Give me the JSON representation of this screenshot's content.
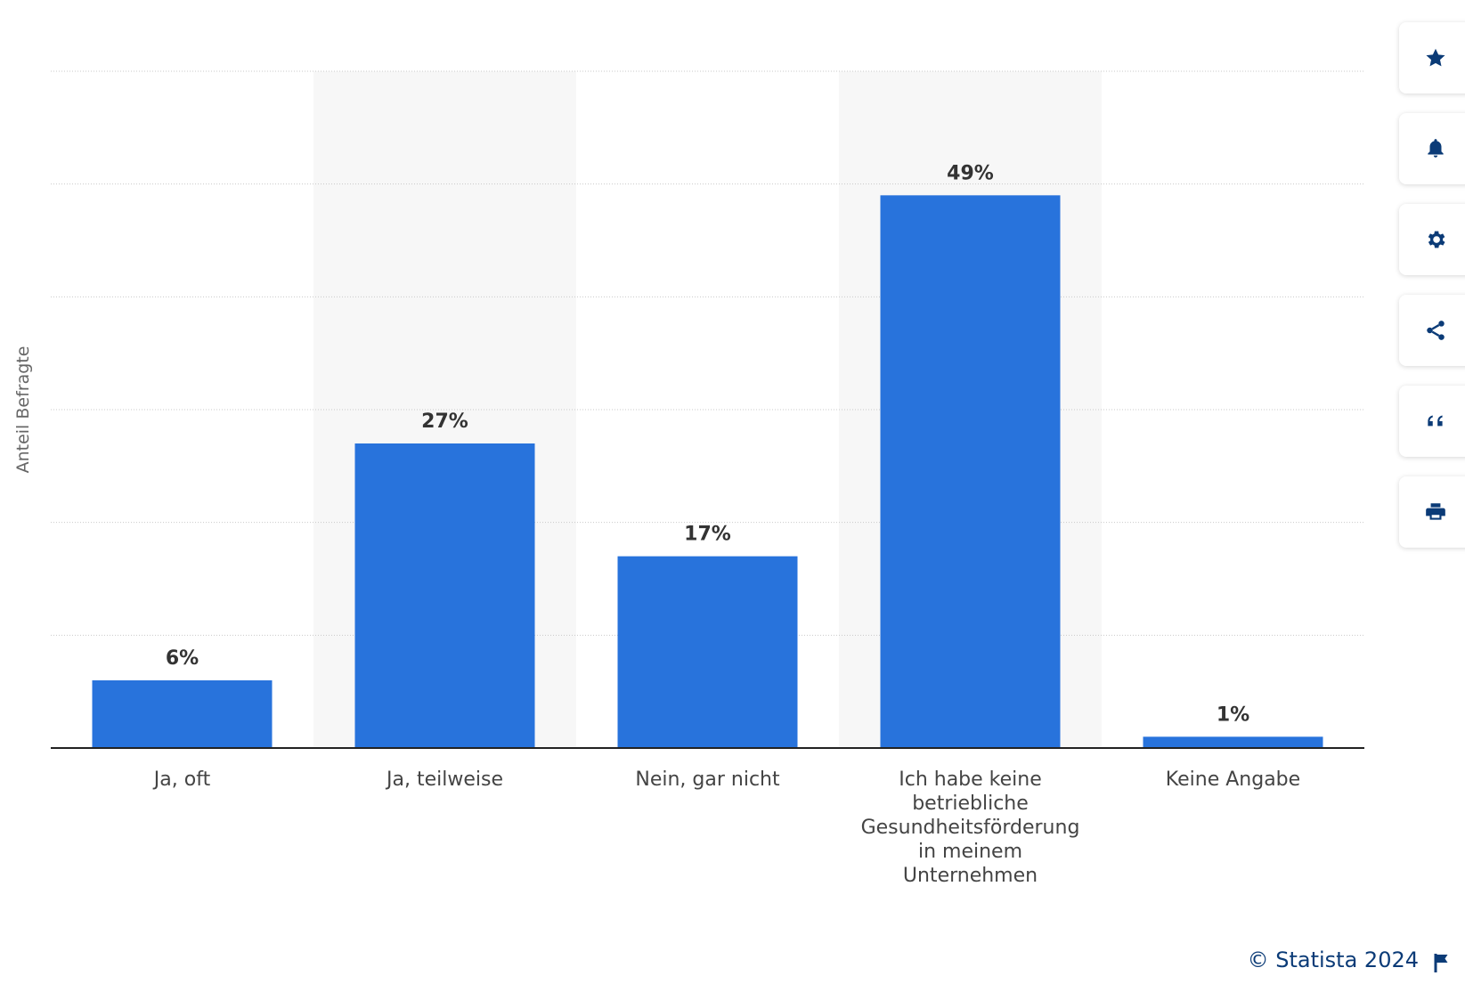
{
  "chart_data": {
    "type": "bar",
    "categories": [
      [
        "Ja, oft"
      ],
      [
        "Ja, teilweise"
      ],
      [
        "Nein, gar nicht"
      ],
      [
        "Ich habe keine",
        "betriebliche",
        "Gesundheitsförderung",
        "in meinem",
        "Unternehmen"
      ],
      [
        "Keine Angabe"
      ]
    ],
    "values": [
      6,
      27,
      17,
      49,
      1
    ],
    "value_labels": [
      "6%",
      "27%",
      "17%",
      "49%",
      "1%"
    ],
    "ylabel": "Anteil Befragte",
    "ylim": [
      0,
      60
    ],
    "grid": true,
    "bar_color": "#2873dc"
  },
  "toolbar": {
    "buttons": [
      {
        "icon": "star-icon"
      },
      {
        "icon": "bell-icon"
      },
      {
        "icon": "gear-icon"
      },
      {
        "icon": "share-icon"
      },
      {
        "icon": "quote-icon"
      },
      {
        "icon": "print-icon"
      }
    ]
  },
  "footer": {
    "credit": "© Statista 2024",
    "flag_icon": "flag-icon"
  }
}
